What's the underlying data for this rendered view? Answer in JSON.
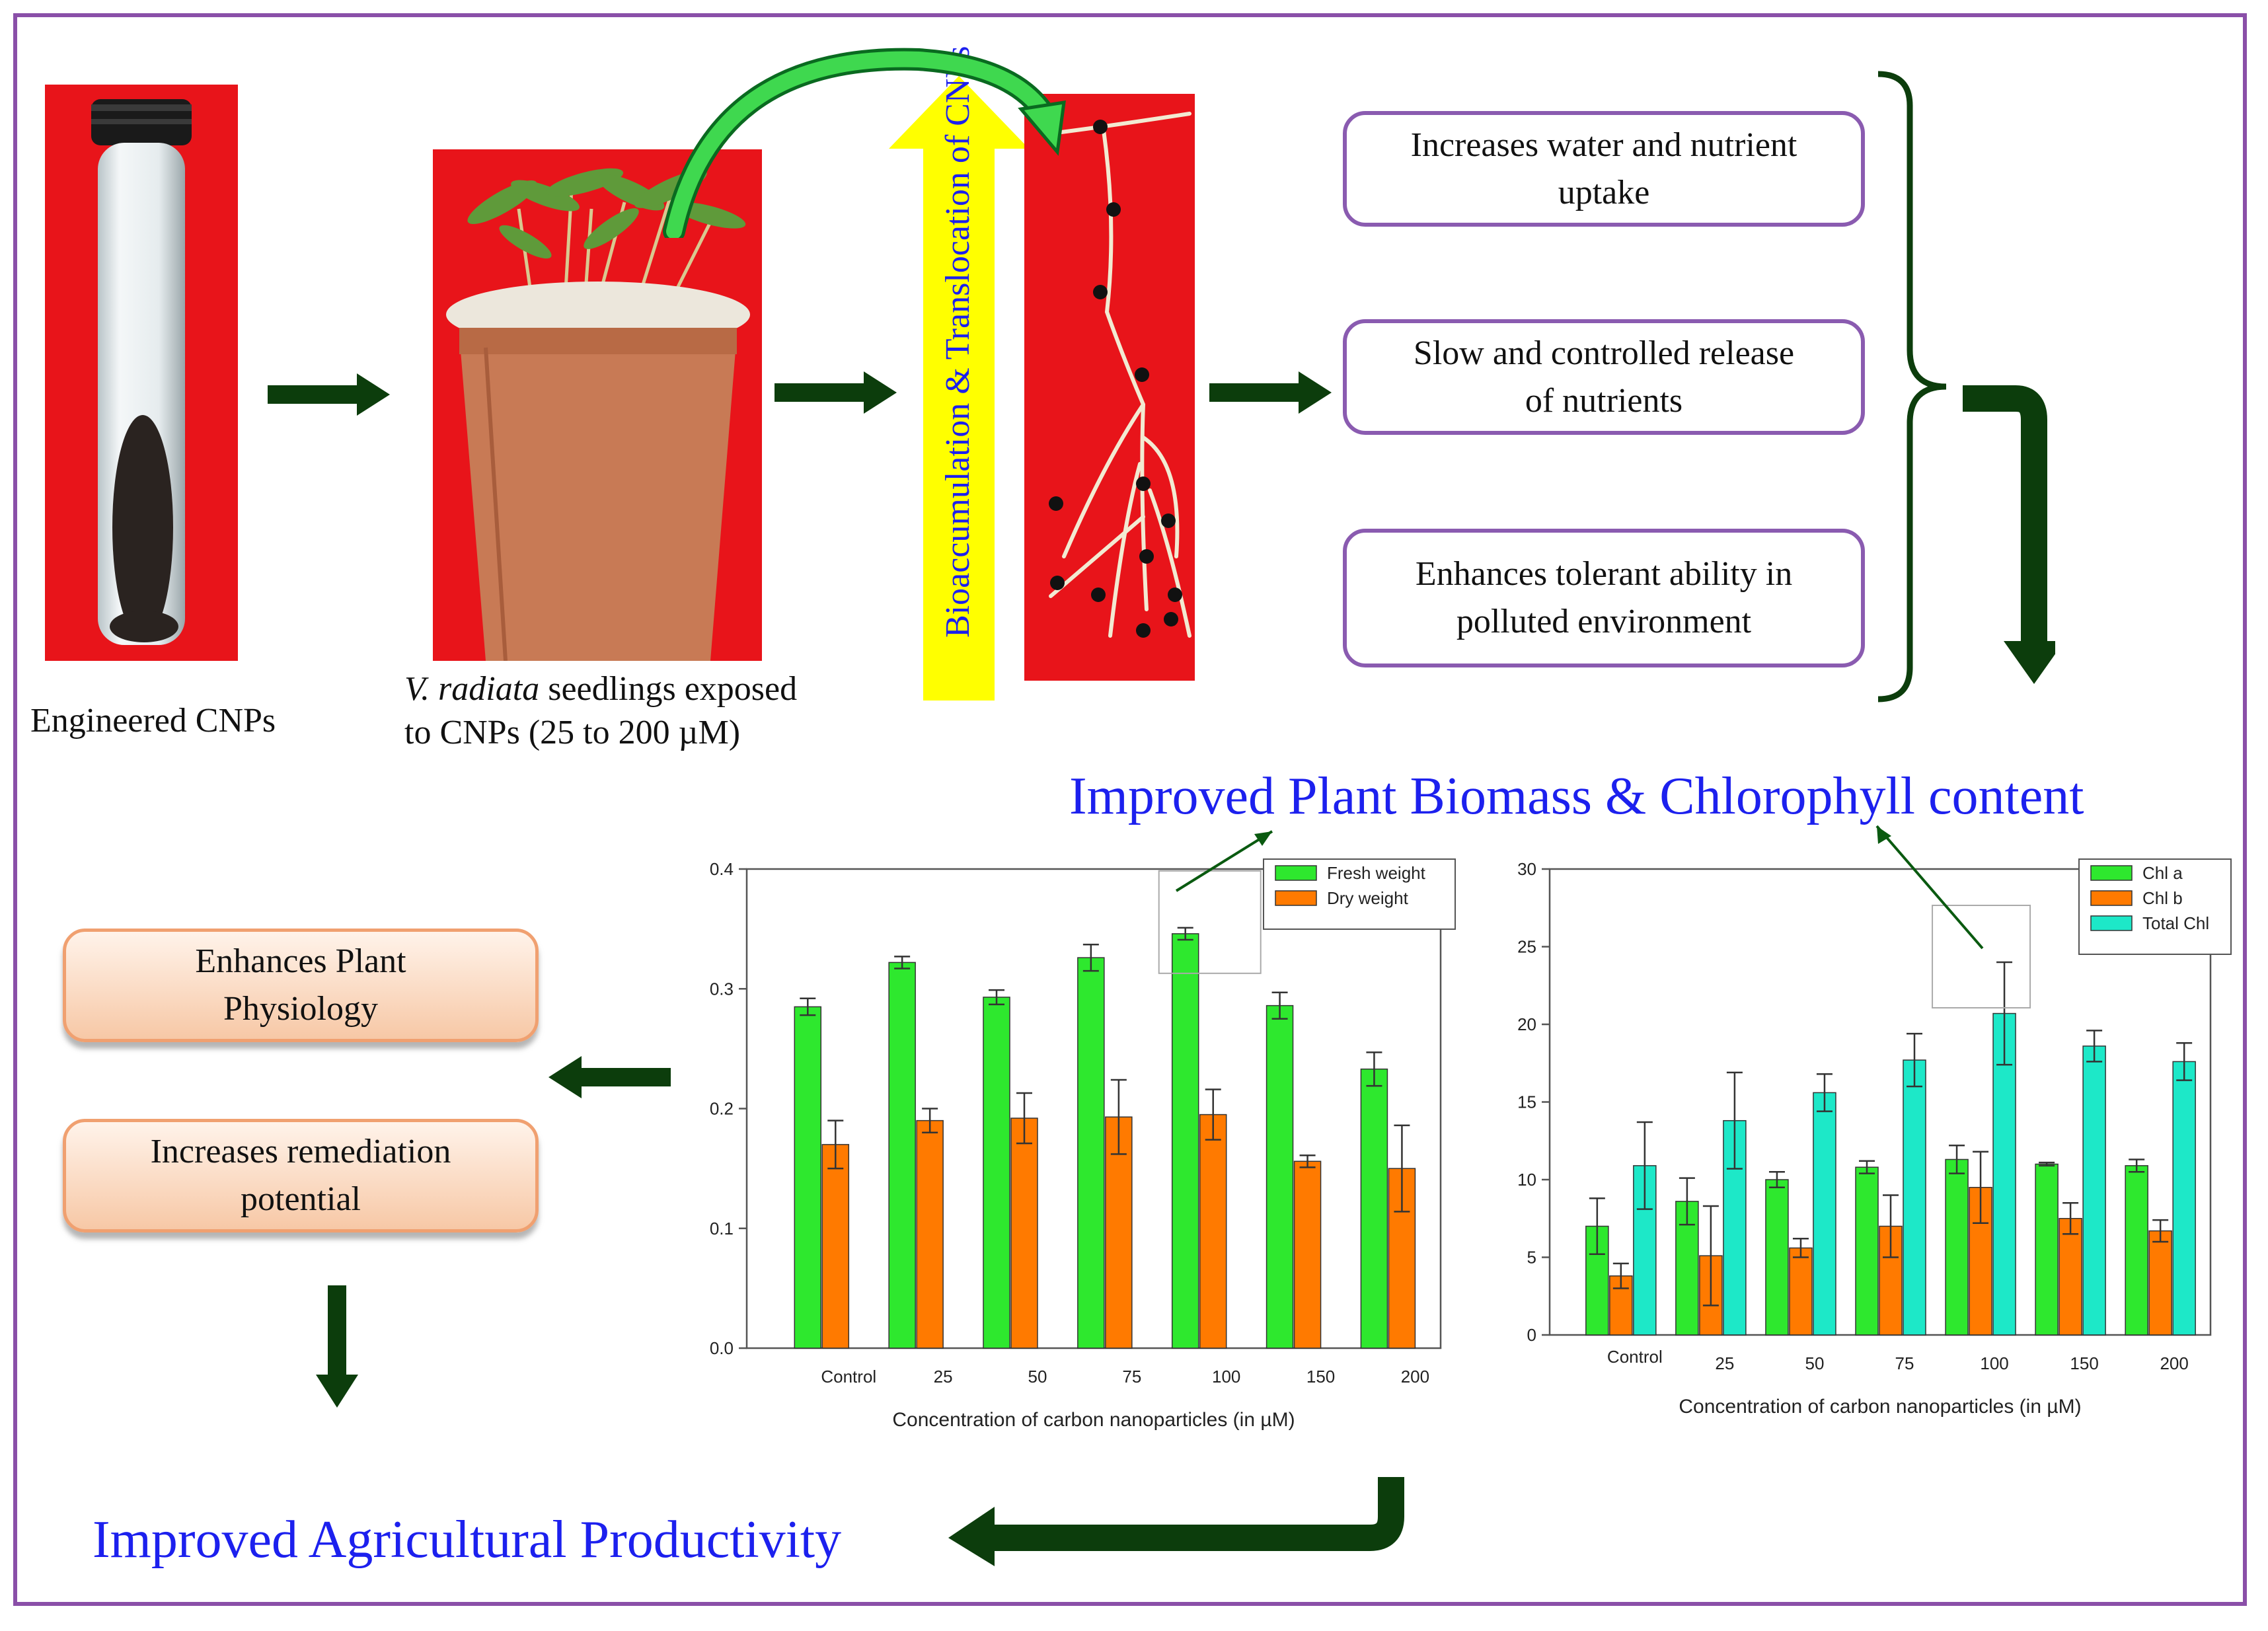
{
  "steps": {
    "cnp_caption": "Engineered CNPs",
    "seedling_species": "V. radiata",
    "seedling_caption_1": " seedlings exposed",
    "seedling_caption_2": "to CNPs (25 to 200 µM)",
    "translocation_label": "Bioaccumulation & Translocation of CNPs"
  },
  "benefits": [
    {
      "line1": "Increases water and nutrient",
      "line2": "uptake"
    },
    {
      "line1": "Slow  and controlled release",
      "line2": "of  nutrients"
    },
    {
      "line1": "Enhances tolerant ability in",
      "line2": "polluted environment"
    }
  ],
  "headings": {
    "biomass": "Improved Plant Biomass & Chlorophyll content",
    "productivity": "Improved Agricultural Productivity"
  },
  "effects": [
    {
      "line1": "Enhances Plant",
      "line2": "Physiology"
    },
    {
      "line1": "Increases remediation",
      "line2": "potential"
    }
  ],
  "colors": {
    "frame": "#8a4fa8",
    "arrow": "#0c3d0c",
    "heading": "#1c20ee",
    "green": "#2ee82e",
    "orange": "#ff7a00",
    "teal": "#1de8c8",
    "photo_bg": "#e8141a",
    "yellow": "#ffff00"
  },
  "chart_data": [
    {
      "type": "bar",
      "xlabel": "Concentration of carbon nanoparticles (in µM)",
      "ylabel": "",
      "categories": [
        "Control",
        "25",
        "50",
        "75",
        "100",
        "150",
        "200"
      ],
      "ylim": [
        0,
        0.4
      ],
      "yticks": [
        "0.0",
        "0.1",
        "0.2",
        "0.3",
        "0.4"
      ],
      "legend_position": "top-right",
      "series": [
        {
          "name": "Fresh weight",
          "color": "#2ee82e",
          "values": [
            0.285,
            0.322,
            0.293,
            0.326,
            0.346,
            0.286,
            0.233
          ],
          "errors": [
            0.007,
            0.005,
            0.006,
            0.011,
            0.005,
            0.011,
            0.014
          ]
        },
        {
          "name": "Dry weight",
          "color": "#ff7a00",
          "values": [
            0.17,
            0.19,
            0.192,
            0.193,
            0.195,
            0.156,
            0.15
          ],
          "errors": [
            0.02,
            0.01,
            0.021,
            0.031,
            0.021,
            0.005,
            0.036
          ]
        }
      ]
    },
    {
      "type": "bar",
      "xlabel": "Concentration of carbon nanoparticles (in µM)",
      "ylabel": "",
      "categories": [
        "Control",
        "25",
        "50",
        "75",
        "100",
        "150",
        "200"
      ],
      "ylim": [
        0,
        30
      ],
      "yticks": [
        "0",
        "5",
        "10",
        "15",
        "20",
        "25",
        "30"
      ],
      "legend_position": "top-right",
      "series": [
        {
          "name": "Chl a",
          "color": "#2ee82e",
          "values": [
            7.0,
            8.6,
            10.0,
            10.8,
            11.3,
            11.0,
            10.9
          ],
          "errors": [
            1.8,
            1.5,
            0.5,
            0.4,
            0.9,
            0.1,
            0.4
          ]
        },
        {
          "name": "Chl b",
          "color": "#ff7a00",
          "values": [
            3.8,
            5.1,
            5.6,
            7.0,
            9.5,
            7.5,
            6.7
          ],
          "errors": [
            0.8,
            3.2,
            0.6,
            2.0,
            2.3,
            1.0,
            0.7
          ]
        },
        {
          "name": "Total Chl",
          "color": "#1de8c8",
          "values": [
            10.9,
            13.8,
            15.6,
            17.7,
            20.7,
            18.6,
            17.6
          ],
          "errors": [
            2.8,
            3.1,
            1.2,
            1.7,
            3.3,
            1.0,
            1.2
          ]
        }
      ]
    }
  ]
}
